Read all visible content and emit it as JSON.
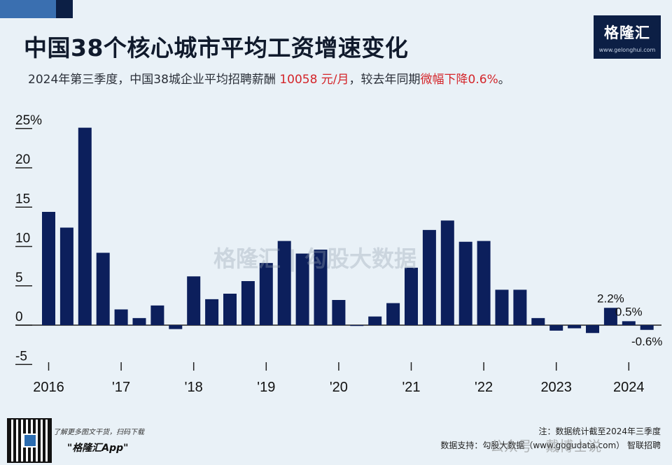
{
  "title": "中国38个核心城市平均工资增速变化",
  "subtitle": {
    "prefix": "2024年第三季度，中国38城企业平均招聘薪酬 ",
    "salary": "10058 元/月",
    "middle": "，较去年同期",
    "change": "微幅下降0.6%",
    "suffix": "。"
  },
  "logo": {
    "name": "格隆汇",
    "url": "www.gelonghui.com"
  },
  "watermark": "格隆汇  |  勾股大数据",
  "footer": {
    "promo_line1": "了解更多图文干货，扫码下载",
    "promo_line2": "\"格隆汇App\"",
    "note": "注：数据统计截至2024年三季度",
    "source": "数据支持：勾股大数据（www.gogudata.com） 智联招聘",
    "wechat": "公众号 · 戴博士说"
  },
  "colors": {
    "bar": "#0c1f5c",
    "accent_red": "#d4252a",
    "background": "#e9f1f7"
  },
  "chart_data": {
    "type": "bar",
    "ylim": [
      -5,
      25
    ],
    "y_ticks": [
      {
        "value": 25,
        "label": "25%"
      },
      {
        "value": 20,
        "label": "20"
      },
      {
        "value": 15,
        "label": "15"
      },
      {
        "value": 10,
        "label": "10"
      },
      {
        "value": 5,
        "label": "5"
      },
      {
        "value": 0,
        "label": "0"
      },
      {
        "value": -5,
        "label": "-5"
      }
    ],
    "x_ticks": [
      {
        "index": 0,
        "label": "2016"
      },
      {
        "index": 4,
        "label": "'17"
      },
      {
        "index": 8,
        "label": "'18"
      },
      {
        "index": 12,
        "label": "'19"
      },
      {
        "index": 16,
        "label": "'20"
      },
      {
        "index": 20,
        "label": "'21"
      },
      {
        "index": 24,
        "label": "'22"
      },
      {
        "index": 28,
        "label": "2023"
      },
      {
        "index": 32,
        "label": "2024"
      }
    ],
    "values": [
      14.4,
      12.4,
      25.1,
      9.2,
      2.0,
      0.9,
      2.5,
      -0.5,
      6.2,
      3.3,
      4.0,
      5.6,
      7.9,
      10.7,
      9.1,
      9.6,
      3.2,
      0.0,
      1.1,
      2.8,
      7.3,
      12.1,
      13.3,
      10.6,
      10.7,
      4.5,
      4.5,
      0.9,
      -0.7,
      -0.4,
      -1.0,
      2.2,
      0.5,
      -0.6
    ],
    "data_labels": [
      {
        "index": 31,
        "label": "2.2%"
      },
      {
        "index": 32,
        "label": "0.5%"
      },
      {
        "index": 33,
        "label": "-0.6%"
      }
    ]
  }
}
